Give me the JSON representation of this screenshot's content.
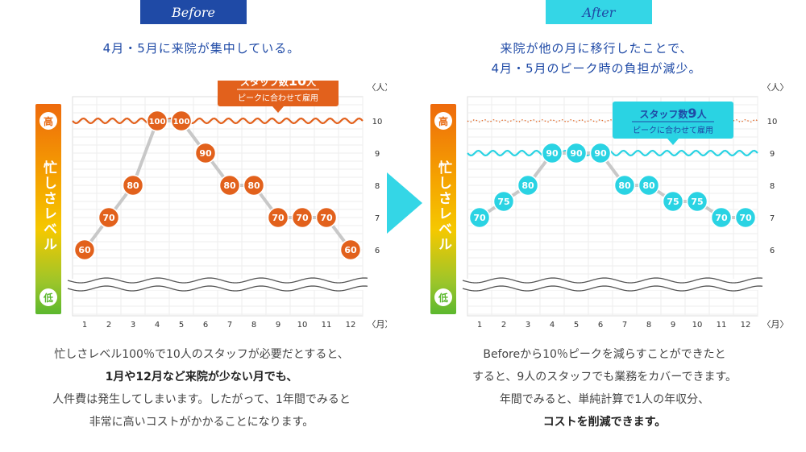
{
  "before": {
    "tab": "Before",
    "subtitle": [
      "4月・5月に来院が集中している。"
    ],
    "callout": {
      "line1_prefix": "スタッフ数",
      "line1_num": "10",
      "line1_suffix": "人",
      "line2": "ピークに合わせて雇用"
    },
    "desc": [
      "忙しさレベル100％で10人のスタッフが必要だとすると、",
      "1月や12月など来院が少ない月でも、",
      "人件費は発生してしまいます。したがって、1年間でみると",
      "非常に高いコストがかかることになります。"
    ]
  },
  "after": {
    "tab": "After",
    "subtitle": [
      "来院が他の月に移行したことで、",
      "4月・5月のピーク時の負担が減少。"
    ],
    "callout": {
      "line1_prefix": "スタッフ数",
      "line1_num": "9",
      "line1_suffix": "人",
      "line2": "ピークに合わせて雇用"
    },
    "desc": [
      "Beforeから10％ピークを減らすことができたと",
      "すると、9人のスタッフでも業務をカバーできます。",
      "年間でみると、単純計算で1人の年収分、",
      "コストを削減できます。"
    ]
  },
  "busy_bar": {
    "high": "高",
    "low": "低",
    "label": "忙しさレベル"
  },
  "colors": {
    "before": "#e2611c",
    "after": "#2ad3e3",
    "line": "#c8c8c8",
    "navy": "#1f4aa6"
  },
  "chart_data": [
    {
      "type": "line",
      "name": "Before",
      "x": [
        1,
        2,
        3,
        4,
        5,
        6,
        7,
        8,
        9,
        10,
        11,
        12
      ],
      "values": [
        60,
        70,
        80,
        100,
        100,
        90,
        80,
        80,
        70,
        70,
        70,
        60
      ],
      "staff_line": 10,
      "y_ticks": [
        6,
        7,
        8,
        9,
        10
      ],
      "x_ticks": [
        1,
        2,
        3,
        4,
        5,
        6,
        7,
        8,
        9,
        10,
        11,
        12
      ],
      "ylabel": "〈人〉",
      "xlabel": "〈月〉"
    },
    {
      "type": "line",
      "name": "After",
      "x": [
        1,
        2,
        3,
        4,
        5,
        6,
        7,
        8,
        9,
        10,
        11,
        12
      ],
      "values": [
        70,
        75,
        80,
        90,
        90,
        90,
        80,
        80,
        75,
        75,
        70,
        70
      ],
      "staff_line": 9,
      "previous_staff_line": 10,
      "y_ticks": [
        6,
        7,
        8,
        9,
        10
      ],
      "x_ticks": [
        1,
        2,
        3,
        4,
        5,
        6,
        7,
        8,
        9,
        10,
        11,
        12
      ],
      "ylabel": "〈人〉",
      "xlabel": "〈月〉"
    }
  ]
}
